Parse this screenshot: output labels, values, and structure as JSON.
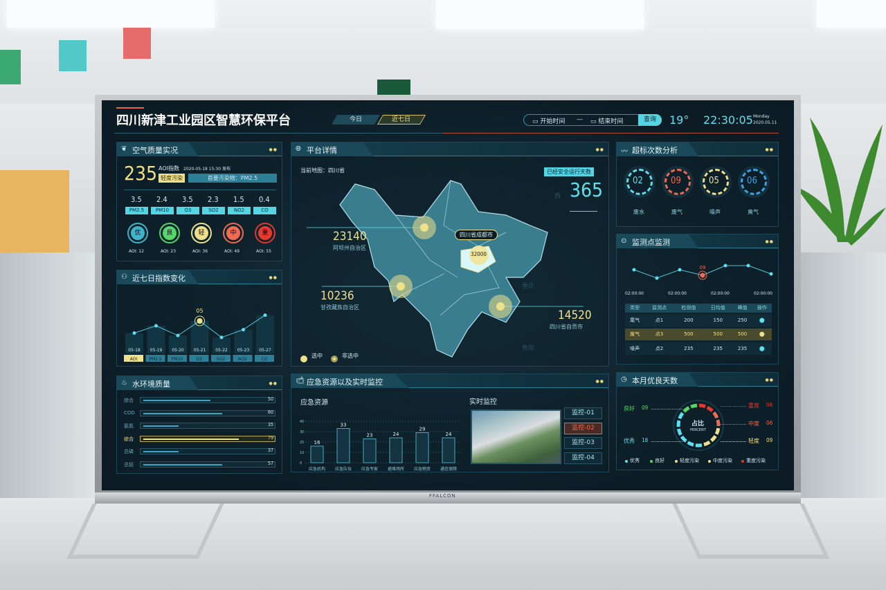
{
  "header": {
    "title": "四川新津工业园区智慧环保平台",
    "tabs": [
      {
        "label": "今日",
        "active": false
      },
      {
        "label": "近七日",
        "active": true
      }
    ],
    "start_placeholder": "开始时间",
    "end_placeholder": "结束时间",
    "dash": "—",
    "query_label": "查询",
    "temperature": "19°",
    "time": "22:30:05",
    "weekday": "Monday",
    "date": "2020.05.11"
  },
  "air": {
    "title": "空气质量实况",
    "aqi": "235",
    "aqi_label": "AOI指数",
    "published": "2020-05-18 15:30 发布",
    "level": "轻度污染",
    "primary": "首要污染物：PM2.5",
    "pollutants": [
      {
        "v": "3.5",
        "n": "PM2.5"
      },
      {
        "v": "2.4",
        "n": "PM10"
      },
      {
        "v": "3.5",
        "n": "O3"
      },
      {
        "v": "2.3",
        "n": "SO2"
      },
      {
        "v": "1.5",
        "n": "NO2"
      },
      {
        "v": "0.4",
        "n": "CO"
      }
    ],
    "grades": [
      {
        "g": "优",
        "aqi": "AOI: 12",
        "color": "#3fb6c8"
      },
      {
        "g": "良",
        "aqi": "AOI: 23",
        "color": "#56d66a"
      },
      {
        "g": "轻",
        "aqi": "AOI: 36",
        "color": "#efe08a"
      },
      {
        "g": "中",
        "aqi": "AOI: 49",
        "color": "#f06b50"
      },
      {
        "g": "重",
        "aqi": "AOI: 55",
        "color": "#e3392e"
      }
    ]
  },
  "week": {
    "title": "近七日指数变化",
    "highlight_label": "05",
    "dates": [
      "05-18",
      "05-19",
      "05-20",
      "05-21",
      "05-22",
      "05-23",
      "05-27"
    ],
    "relative_levels": [
      0.45,
      0.6,
      0.4,
      0.7,
      0.36,
      0.52,
      0.82
    ],
    "highlight_index": 3,
    "tabs": [
      "AOI",
      "PM2.5",
      "PM10",
      "O3",
      "SO2",
      "NO2",
      "CO"
    ],
    "active_tab": 0
  },
  "water": {
    "title": "水环境质量",
    "items": [
      {
        "n": "综合",
        "v": 50,
        "pct": 0.57
      },
      {
        "n": "COD",
        "v": 60,
        "pct": 0.67
      },
      {
        "n": "氨氮",
        "v": 35,
        "pct": 0.3
      },
      {
        "n": "综合",
        "v": 79,
        "pct": 0.81,
        "hl": true
      },
      {
        "n": "总磷",
        "v": 37,
        "pct": 0.3
      },
      {
        "n": "总铅",
        "v": 57,
        "pct": 0.67
      }
    ]
  },
  "platform": {
    "title": "平台详情",
    "current_map": "当前地图：四川省",
    "safe_days_label": "已经安全运行天数",
    "safe_days": "365",
    "regions": [
      {
        "v": "23140",
        "n": "阿坝州自治区"
      },
      {
        "v": "10236",
        "n": "甘孜藏族自治区"
      },
      {
        "v": "14520",
        "n": "四川省自贡市"
      }
    ],
    "selected": {
      "n": "四川省成都市",
      "v": "32000"
    },
    "neighbors": [
      "西",
      "重庆",
      "贵阳"
    ],
    "legend": [
      "选中",
      "非选中"
    ]
  },
  "emergency": {
    "title": "应急资源以及实时监控",
    "res_title": "应急资源",
    "monitor_title": "实时监控",
    "chart_data": {
      "type": "bar",
      "categories": [
        "应急机构",
        "应急队伍",
        "应急专家",
        "避难场所",
        "应急物资",
        "通信保障"
      ],
      "values": [
        16,
        33,
        23,
        24,
        29,
        24
      ],
      "ylim": [
        0,
        40
      ],
      "yticks": [
        "0",
        "10",
        "20",
        "30",
        "40"
      ]
    },
    "monitors": [
      "监控-01",
      "监控-02",
      "监控-03",
      "监控-04"
    ],
    "active_monitor": 1
  },
  "exceed": {
    "title": "超标次数分析",
    "items": [
      {
        "v": "02",
        "n": "废水",
        "color": "#5fe0ee"
      },
      {
        "v": "09",
        "n": "废气",
        "color": "#f06b50"
      },
      {
        "v": "05",
        "n": "噪声",
        "color": "#efe08a"
      },
      {
        "v": "06",
        "n": "臭气",
        "color": "#3aa6e6"
      }
    ]
  },
  "monitor": {
    "title": "监测点监测",
    "highlight_label": "09",
    "relative_levels": [
      0.6,
      0.3,
      0.6,
      0.4,
      0.75,
      0.75,
      0.45
    ],
    "highlight_index": 3,
    "times": [
      "02:00:00",
      "02:00:00",
      "02:00:00",
      "02:00:00"
    ],
    "columns": [
      "类型",
      "监测点",
      "检测值",
      "日均值",
      "峰值",
      "操作"
    ],
    "rows": [
      [
        "尾气",
        "点1",
        "200",
        "150",
        "250"
      ],
      [
        "废气",
        "点3",
        "500",
        "500",
        "500"
      ],
      [
        "噪声",
        "点2",
        "235",
        "235",
        "235"
      ]
    ],
    "highlight_row": 1
  },
  "month": {
    "title": "本月优良天数",
    "center": "占比",
    "center_sub": "PERCENT",
    "labels": [
      {
        "n": "良好",
        "v": "09",
        "c": "#56d66a"
      },
      {
        "n": "优秀",
        "v": "18",
        "c": "#5fe0ee"
      },
      {
        "n": "重度",
        "v": "06",
        "c": "#e3392e"
      },
      {
        "n": "中度",
        "v": "06",
        "c": "#f06b50"
      },
      {
        "n": "轻度",
        "v": "09",
        "c": "#efe08a"
      }
    ],
    "legend": [
      {
        "n": "优秀",
        "c": "#5fe0ee"
      },
      {
        "n": "良好",
        "c": "#56d66a"
      },
      {
        "n": "轻度污染",
        "c": "#efe08a"
      },
      {
        "n": "中度污染",
        "c": "#efe08a"
      },
      {
        "n": "重度污染",
        "c": "#e3392e"
      }
    ]
  },
  "tv_brand": "FFALCON"
}
